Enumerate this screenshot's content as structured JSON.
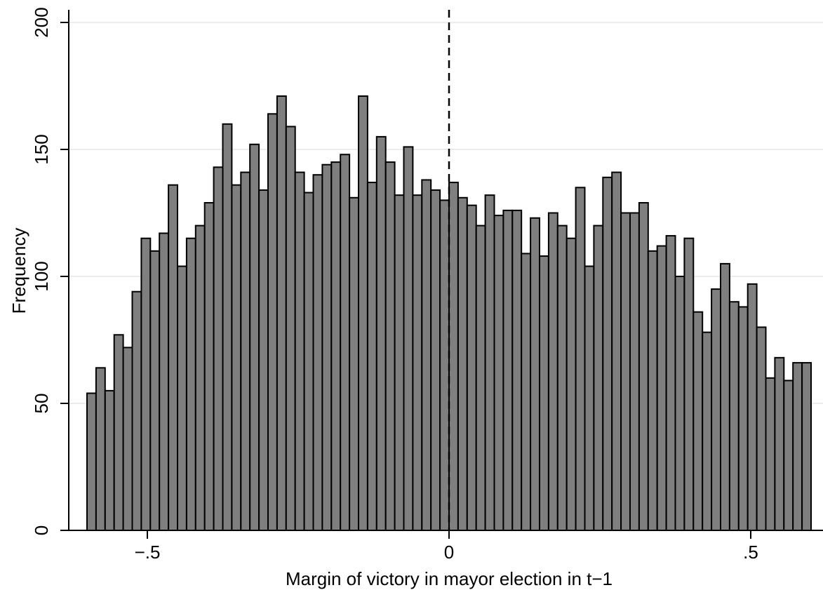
{
  "chart_data": {
    "type": "bar",
    "title": "",
    "xlabel": "Margin of victory in mayor election in t−1",
    "ylabel": "Frequency",
    "xlim": [
      -0.6,
      0.6
    ],
    "ylim": [
      0,
      200
    ],
    "x_ticks": [
      -0.5,
      0,
      0.5
    ],
    "x_tick_labels": [
      "−.5",
      "0",
      ".5"
    ],
    "y_ticks": [
      0,
      50,
      100,
      150,
      200
    ],
    "y_tick_labels": [
      "0",
      "50",
      "100",
      "150",
      "200"
    ],
    "grid": "horizontal",
    "bar_color": "#7f7f7f",
    "bar_edge_color": "#000000",
    "reference_line": {
      "x": 0,
      "style": "dashed"
    },
    "bins": {
      "start": -0.6,
      "width": 0.015
    },
    "values": [
      54,
      64,
      55,
      77,
      72,
      94,
      115,
      110,
      117,
      136,
      104,
      115,
      120,
      129,
      143,
      160,
      136,
      141,
      152,
      134,
      164,
      171,
      159,
      141,
      133,
      140,
      144,
      145,
      148,
      131,
      171,
      137,
      155,
      145,
      132,
      151,
      132,
      138,
      134,
      130,
      137,
      131,
      128,
      120,
      132,
      124,
      126,
      126,
      109,
      123,
      108,
      125,
      120,
      115,
      135,
      104,
      120,
      139,
      141,
      125,
      125,
      129,
      110,
      112,
      116,
      100,
      115,
      86,
      78,
      95,
      105,
      90,
      88,
      97,
      80,
      60,
      68,
      59,
      66,
      66
    ]
  }
}
